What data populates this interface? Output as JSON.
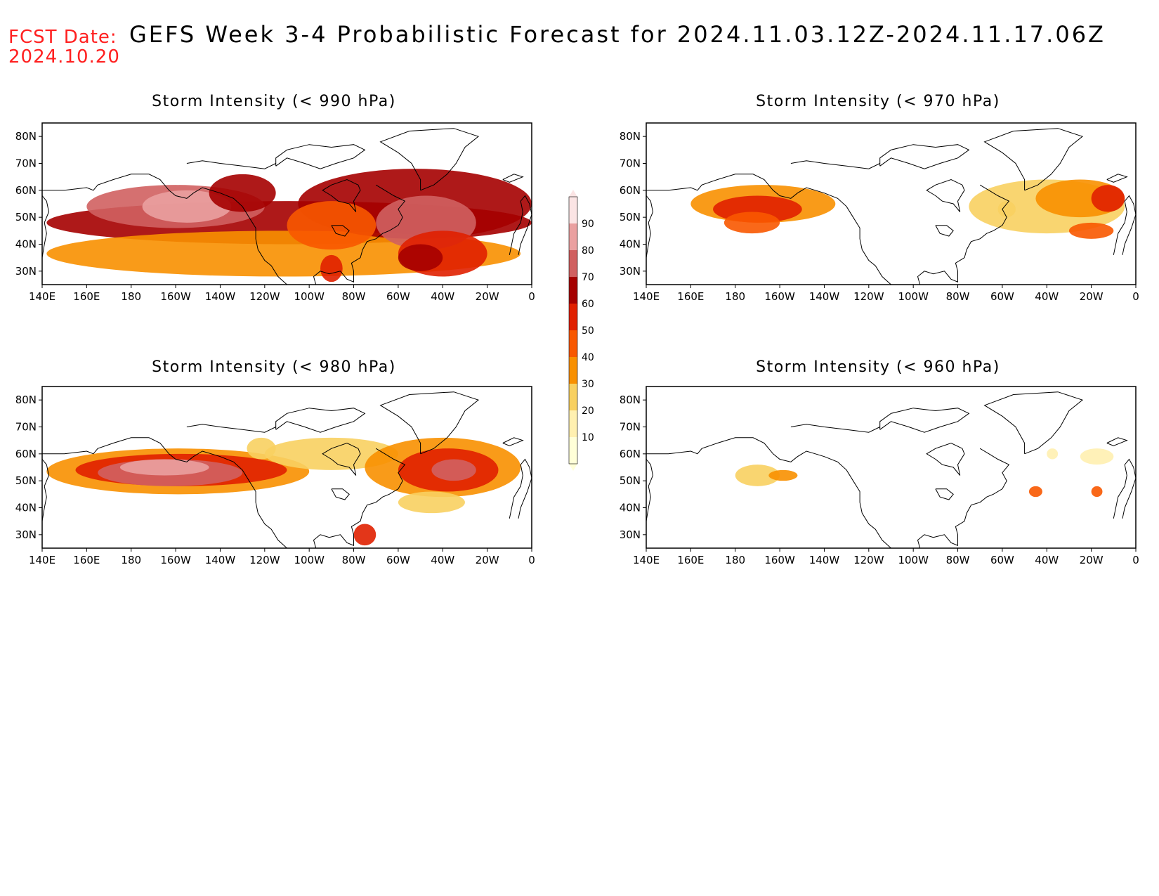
{
  "header": {
    "fcst_label": "FCST Date:",
    "fcst_date": "2024.10.20",
    "title": "GEFS Week 3-4 Probabilistic Forecast for 2024.11.03.12Z-2024.11.17.06Z"
  },
  "lon_ticks": [
    "140E",
    "160E",
    "180",
    "160W",
    "140W",
    "120W",
    "100W",
    "80W",
    "60W",
    "40W",
    "20W",
    "0"
  ],
  "lat_ticks": [
    "80N",
    "70N",
    "60N",
    "50N",
    "40N",
    "30N"
  ],
  "colorbar": {
    "levels": [
      "90",
      "80",
      "70",
      "60",
      "50",
      "40",
      "30",
      "20",
      "10"
    ],
    "colors": [
      "#fbe4e4",
      "#eaa0a0",
      "#d06060",
      "#a50000",
      "#e02000",
      "#f85800",
      "#f89000",
      "#f8d060",
      "#fff0b0",
      "#ffffd8"
    ]
  },
  "panels": [
    {
      "id": "p990",
      "title": "Storm Intensity (< 990 hPa)"
    },
    {
      "id": "p970",
      "title": "Storm Intensity (< 970 hPa)"
    },
    {
      "id": "p980",
      "title": "Storm Intensity (< 980 hPa)"
    },
    {
      "id": "p960",
      "title": "Storm Intensity (< 960 hPa)"
    }
  ]
}
